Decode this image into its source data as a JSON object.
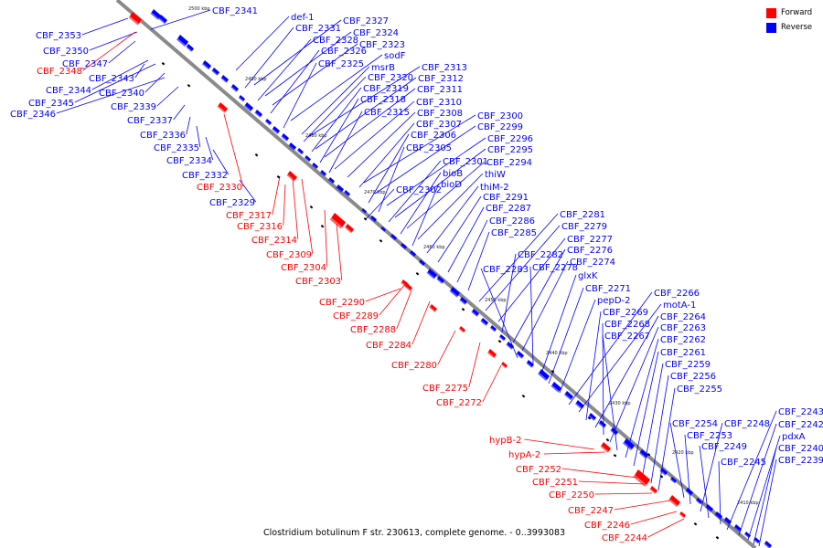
{
  "caption": "Clostridium botulinum F str. 230613, complete genome. - 0..3993083",
  "legend": [
    {
      "label": "Forward",
      "color": "#ff0000"
    },
    {
      "label": "Reverse",
      "color": "#0000ff"
    }
  ],
  "colors": {
    "forward": "#ff0000",
    "reverse": "#0000ff",
    "backbone": "#8a8a8a",
    "leader": "#0000ff"
  },
  "ticks": [
    "2500 kbp",
    "2490 kbp",
    "2480 kbp",
    "2470 kbp",
    "2460 kbp",
    "2450 kbp",
    "2440 kbp",
    "2430 kbp",
    "2420 kbp",
    "2410 kbp"
  ],
  "reverse_labels": [
    "CBF_2341",
    "def-1",
    "CBF_2327",
    "CBF_2331",
    "CBF_2324",
    "CBF_2328",
    "CBF_2323",
    "CBF_2326",
    "sodF",
    "CBF_2325",
    "msrB",
    "CBF_2313",
    "CBF_2320",
    "CBF_2312",
    "CBF_2319",
    "CBF_2311",
    "CBF_2318",
    "CBF_2310",
    "CBF_2315",
    "CBF_2308",
    "CBF_2300",
    "CBF_2307",
    "CBF_2299",
    "CBF_2306",
    "CBF_2296",
    "CBF_2305",
    "CBF_2295",
    "CBF_2301",
    "CBF_2294",
    "bioB",
    "thiW",
    "bioD",
    "thiM-2",
    "CBF_2302",
    "CBF_2291",
    "CBF_2287",
    "CBF_2286",
    "CBF_2285",
    "CBF_2281",
    "CBF_2279",
    "CBF_2277",
    "CBF_2282",
    "CBF_2276",
    "CBF_2274",
    "CBF_2283",
    "CBF_2278",
    "glxK",
    "CBF_2271",
    "pepD-2",
    "CBF_2266",
    "motA-1",
    "CBF_2269",
    "CBF_2264",
    "CBF_2268",
    "CBF_2263",
    "CBF_2267",
    "CBF_2262",
    "CBF_2261",
    "CBF_2259",
    "CBF_2256",
    "CBF_2255",
    "CBF_2254",
    "CBF_2253",
    "CBF_2248",
    "CBF_2249",
    "CBF_2245",
    "CBF_2243",
    "CBF_2242",
    "pdxA",
    "CBF_2240",
    "CBF_2239",
    "CBF_2353",
    "CBF_2350",
    "CBF_2347",
    "CBF_2343",
    "CBF_2344",
    "CBF_2340",
    "CBF_2345",
    "CBF_2339",
    "CBF_2346",
    "CBF_2337",
    "CBF_2336",
    "CBF_2335",
    "CBF_2334",
    "CBF_2332",
    "CBF_2329"
  ],
  "forward_labels": [
    "CBF_2348",
    "CBF_2330",
    "CBF_2317",
    "CBF_2316",
    "CBF_2314",
    "CBF_2309",
    "CBF_2304",
    "CBF_2303",
    "CBF_2290",
    "CBF_2289",
    "CBF_2288",
    "CBF_2284",
    "CBF_2280",
    "CBF_2275",
    "CBF_2272",
    "hypB-2",
    "hypA-2",
    "CBF_2252",
    "CBF_2251",
    "CBF_2250",
    "CBF_2247",
    "CBF_2246",
    "CBF_2244"
  ]
}
